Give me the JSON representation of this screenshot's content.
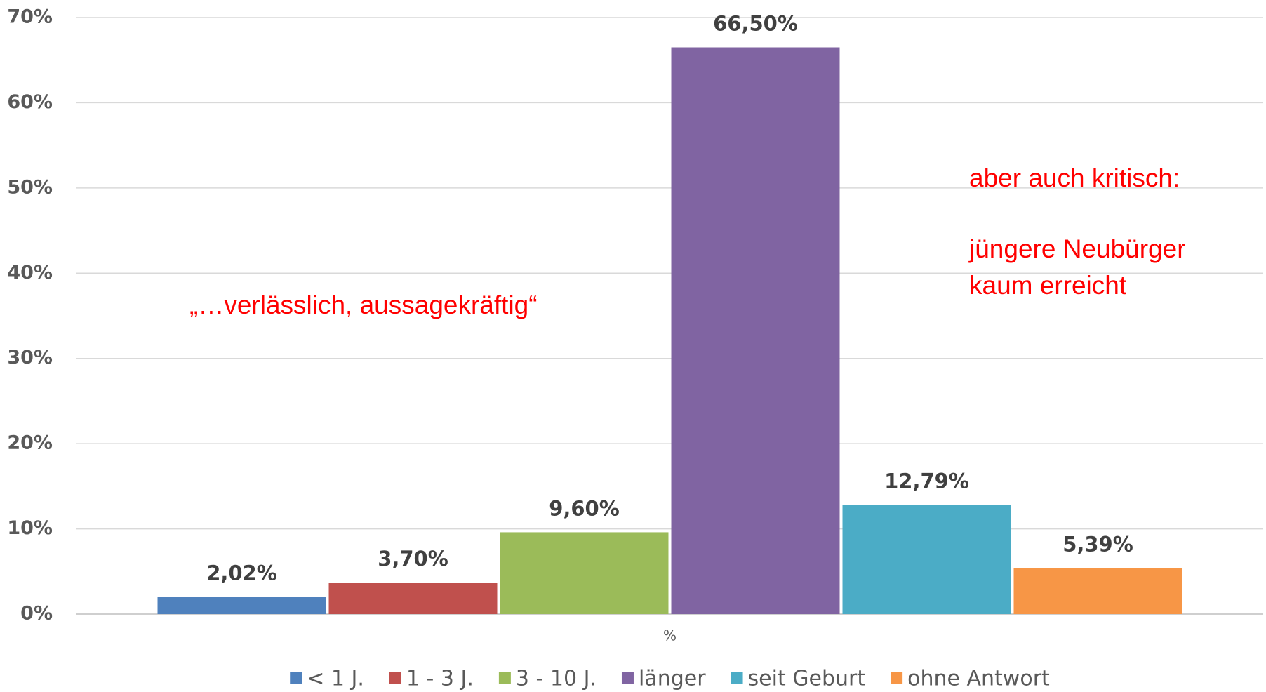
{
  "chart_data": {
    "type": "bar",
    "categories": [
      "%"
    ],
    "series": [
      {
        "name": "< 1 J.",
        "color": "#4f81bd",
        "values": [
          2.02
        ],
        "value_labels": [
          "2,02%"
        ]
      },
      {
        "name": "1 - 3 J.",
        "color": "#c0504d",
        "values": [
          3.7
        ],
        "value_labels": [
          "3,70%"
        ]
      },
      {
        "name": "3 - 10 J.",
        "color": "#9bbb59",
        "values": [
          9.6
        ],
        "value_labels": [
          "9,60%"
        ]
      },
      {
        "name": "länger",
        "color": "#8064a2",
        "values": [
          66.5
        ],
        "value_labels": [
          "66,50%"
        ]
      },
      {
        "name": "seit Geburt",
        "color": "#4bacc6",
        "values": [
          12.79
        ],
        "value_labels": [
          "12,79%"
        ]
      },
      {
        "name": "ohne Antwort",
        "color": "#f79646",
        "values": [
          5.39
        ],
        "value_labels": [
          "5,39%"
        ]
      }
    ],
    "ylim": [
      0,
      70
    ],
    "yticks": [
      {
        "value": 0,
        "label": "0%"
      },
      {
        "value": 10,
        "label": "10%"
      },
      {
        "value": 20,
        "label": "20%"
      },
      {
        "value": 30,
        "label": "30%"
      },
      {
        "value": 40,
        "label": "40%"
      },
      {
        "value": 50,
        "label": "50%"
      },
      {
        "value": 60,
        "label": "60%"
      },
      {
        "value": 70,
        "label": "70%"
      }
    ],
    "grid": true,
    "legend": "bottom",
    "annotations": [
      "„…verlässlich, aussagekräftig“",
      "aber auch kritisch:",
      "jüngere Neubürger",
      "kaum erreicht"
    ]
  }
}
